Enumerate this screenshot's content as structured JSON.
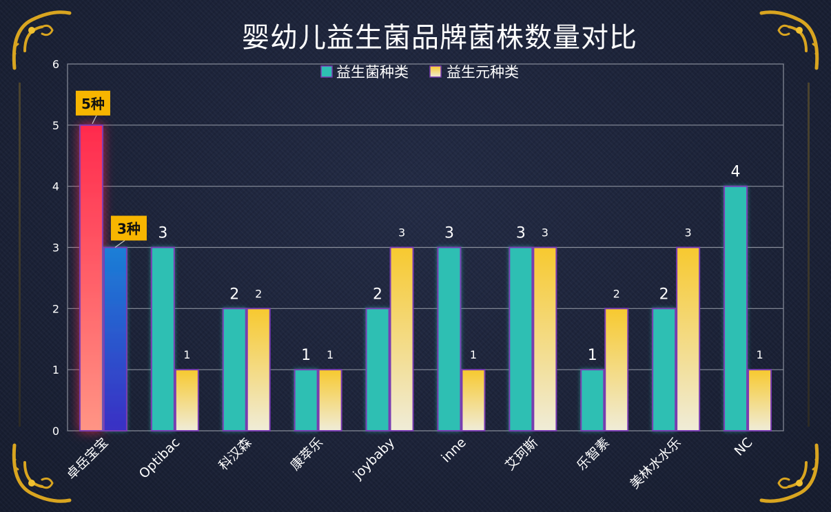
{
  "chart_data": {
    "type": "bar",
    "title": "婴幼儿益生菌品牌菌株数量对比",
    "categories": [
      "卓岳宝宝",
      "Optibac",
      "科汉森",
      "康萃乐",
      "joybaby",
      "inne",
      "艾珂斯",
      "乐智素",
      "美林水水乐",
      "NC"
    ],
    "series": [
      {
        "name": "益生菌种类",
        "values": [
          5,
          3,
          2,
          1,
          2,
          3,
          3,
          1,
          2,
          4
        ]
      },
      {
        "name": "益生元种类",
        "values": [
          3,
          1,
          2,
          1,
          3,
          1,
          3,
          2,
          3,
          1
        ]
      }
    ],
    "ylim": [
      0,
      6
    ],
    "yticks": [
      "0",
      "1",
      "2",
      "3",
      "4",
      "5",
      "6"
    ],
    "grid": true,
    "legend": "top-center",
    "data_labels": {
      "series0": [
        "5种",
        "3",
        "2",
        "1",
        "2",
        "3",
        "3",
        "1",
        "2",
        "4"
      ],
      "series1": [
        "3种",
        "1",
        "2",
        "1",
        "3",
        "1",
        "3",
        "2",
        "3",
        "1"
      ]
    },
    "colors": {
      "series0": "#2ebfb3",
      "series1_top": "#f7c92f",
      "series1_bottom": "#f0ecd8",
      "highlight0_top": "#ff2a4d",
      "highlight0_bottom": "#ff9585",
      "highlight1_top": "#1b7fd6",
      "highlight1_bottom": "#3a2fc4",
      "bar_border": "#7a3db3",
      "callout_bg": "#f7b500"
    }
  }
}
